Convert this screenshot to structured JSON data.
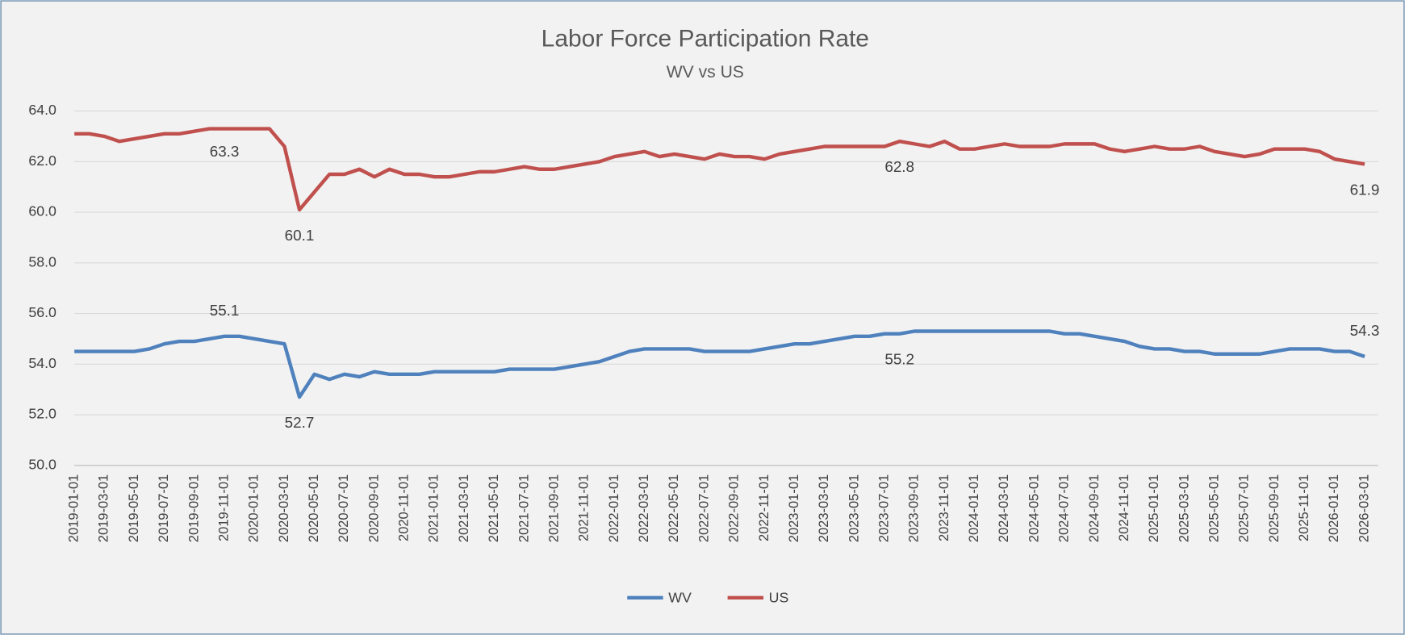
{
  "chart_data": {
    "type": "line",
    "title": "Labor Force Participation Rate",
    "subtitle": "WV vs US",
    "categories": [
      "2019-01-01",
      null,
      "2019-03-01",
      null,
      "2019-05-01",
      null,
      "2019-07-01",
      null,
      "2019-09-01",
      null,
      "2019-11-01",
      null,
      "2020-01-01",
      null,
      "2020-03-01",
      null,
      "2020-05-01",
      null,
      "2020-07-01",
      null,
      "2020-09-01",
      null,
      "2020-11-01",
      null,
      "2021-01-01",
      null,
      "2021-03-01",
      null,
      "2021-05-01",
      null,
      "2021-07-01",
      null,
      "2021-09-01",
      null,
      "2021-11-01",
      null,
      "2022-01-01",
      null,
      "2022-03-01",
      null,
      "2022-05-01",
      null,
      "2022-07-01",
      null,
      "2022-09-01",
      null,
      "2022-11-01",
      null,
      "2023-01-01",
      null,
      "2023-03-01",
      null,
      "2023-05-01",
      null,
      "2023-07-01",
      null,
      "2023-09-01",
      null,
      "2023-11-01",
      null,
      "2024-01-01",
      null,
      "2024-03-01",
      null,
      "2024-05-01",
      null,
      "2024-07-01",
      null,
      "2024-09-01",
      null,
      "2024-11-01",
      null,
      "2025-01-01",
      null,
      "2025-03-01",
      null,
      "2025-05-01",
      null,
      "2025-07-01",
      null,
      "2025-09-01",
      null,
      "2025-11-01",
      null,
      "2026-01-01",
      null,
      "2026-03-01"
    ],
    "series": [
      {
        "name": "WV",
        "color": "#4f81bd",
        "values": [
          54.5,
          54.5,
          54.5,
          54.5,
          54.5,
          54.6,
          54.8,
          54.9,
          54.9,
          55.0,
          55.1,
          55.1,
          55.0,
          54.9,
          54.8,
          52.7,
          53.6,
          53.4,
          53.6,
          53.5,
          53.7,
          53.6,
          53.6,
          53.6,
          53.7,
          53.7,
          53.7,
          53.7,
          53.7,
          53.8,
          53.8,
          53.8,
          53.8,
          53.9,
          54.0,
          54.1,
          54.3,
          54.5,
          54.6,
          54.6,
          54.6,
          54.6,
          54.5,
          54.5,
          54.5,
          54.5,
          54.6,
          54.7,
          54.8,
          54.8,
          54.9,
          55.0,
          55.1,
          55.1,
          55.2,
          55.2,
          55.3,
          55.3,
          55.3,
          55.3,
          55.3,
          55.3,
          55.3,
          55.3,
          55.3,
          55.3,
          55.2,
          55.2,
          55.1,
          55.0,
          54.9,
          54.7,
          54.6,
          54.6,
          54.5,
          54.5,
          54.4,
          54.4,
          54.4,
          54.4,
          54.5,
          54.6,
          54.6,
          54.6,
          54.5,
          54.5,
          54.3
        ],
        "value_labels": [
          null,
          null,
          null,
          null,
          null,
          null,
          null,
          null,
          null,
          null,
          "55.1",
          null,
          null,
          null,
          null,
          "52.7",
          null,
          null,
          null,
          null,
          null,
          null,
          null,
          null,
          null,
          null,
          null,
          null,
          null,
          null,
          null,
          null,
          null,
          null,
          null,
          null,
          null,
          null,
          null,
          null,
          null,
          null,
          null,
          null,
          null,
          null,
          null,
          null,
          null,
          null,
          null,
          null,
          null,
          null,
          null,
          "55.2",
          null,
          null,
          null,
          null,
          null,
          null,
          null,
          null,
          null,
          null,
          null,
          null,
          null,
          null,
          null,
          null,
          null,
          null,
          null,
          null,
          null,
          null,
          null,
          null,
          null,
          null,
          null,
          null,
          null,
          null,
          "54.3"
        ]
      },
      {
        "name": "US",
        "color": "#c0504d",
        "values": [
          63.1,
          63.1,
          63.0,
          62.8,
          62.9,
          63.0,
          63.1,
          63.1,
          63.2,
          63.3,
          63.3,
          63.3,
          63.3,
          63.3,
          62.6,
          60.1,
          60.8,
          61.5,
          61.5,
          61.7,
          61.4,
          61.7,
          61.5,
          61.5,
          61.4,
          61.4,
          61.5,
          61.6,
          61.6,
          61.7,
          61.8,
          61.7,
          61.7,
          61.8,
          61.9,
          62.0,
          62.2,
          62.3,
          62.4,
          62.2,
          62.3,
          62.2,
          62.1,
          62.3,
          62.2,
          62.2,
          62.1,
          62.3,
          62.4,
          62.5,
          62.6,
          62.6,
          62.6,
          62.6,
          62.6,
          62.8,
          62.7,
          62.6,
          62.8,
          62.5,
          62.5,
          62.6,
          62.7,
          62.6,
          62.6,
          62.6,
          62.7,
          62.7,
          62.7,
          62.5,
          62.4,
          62.5,
          62.6,
          62.5,
          62.5,
          62.6,
          62.4,
          62.3,
          62.2,
          62.3,
          62.5,
          62.5,
          62.5,
          62.4,
          62.1,
          62.0,
          61.9
        ],
        "value_labels": [
          null,
          null,
          null,
          null,
          null,
          null,
          null,
          null,
          null,
          null,
          "63.3",
          null,
          null,
          null,
          null,
          "60.1",
          null,
          null,
          null,
          null,
          null,
          null,
          null,
          null,
          null,
          null,
          null,
          null,
          null,
          null,
          null,
          null,
          null,
          null,
          null,
          null,
          null,
          null,
          null,
          null,
          null,
          null,
          null,
          null,
          null,
          null,
          null,
          null,
          null,
          null,
          null,
          null,
          null,
          null,
          null,
          "62.8",
          null,
          null,
          null,
          null,
          null,
          null,
          null,
          null,
          null,
          null,
          null,
          null,
          null,
          null,
          null,
          null,
          null,
          null,
          null,
          null,
          null,
          null,
          null,
          null,
          null,
          null,
          null,
          null,
          null,
          null,
          "61.9"
        ]
      }
    ],
    "ylim": [
      50,
      64
    ],
    "yticks": [
      {
        "value": 50,
        "label": "50.0"
      },
      {
        "value": 52,
        "label": "52.0"
      },
      {
        "value": 54,
        "label": "54.0"
      },
      {
        "value": 56,
        "label": "56.0"
      },
      {
        "value": 58,
        "label": "58.0"
      },
      {
        "value": 60,
        "label": "60.0"
      },
      {
        "value": 62,
        "label": "62.0"
      },
      {
        "value": 64,
        "label": "64.0"
      }
    ],
    "grid": true,
    "legend": "bottom"
  }
}
